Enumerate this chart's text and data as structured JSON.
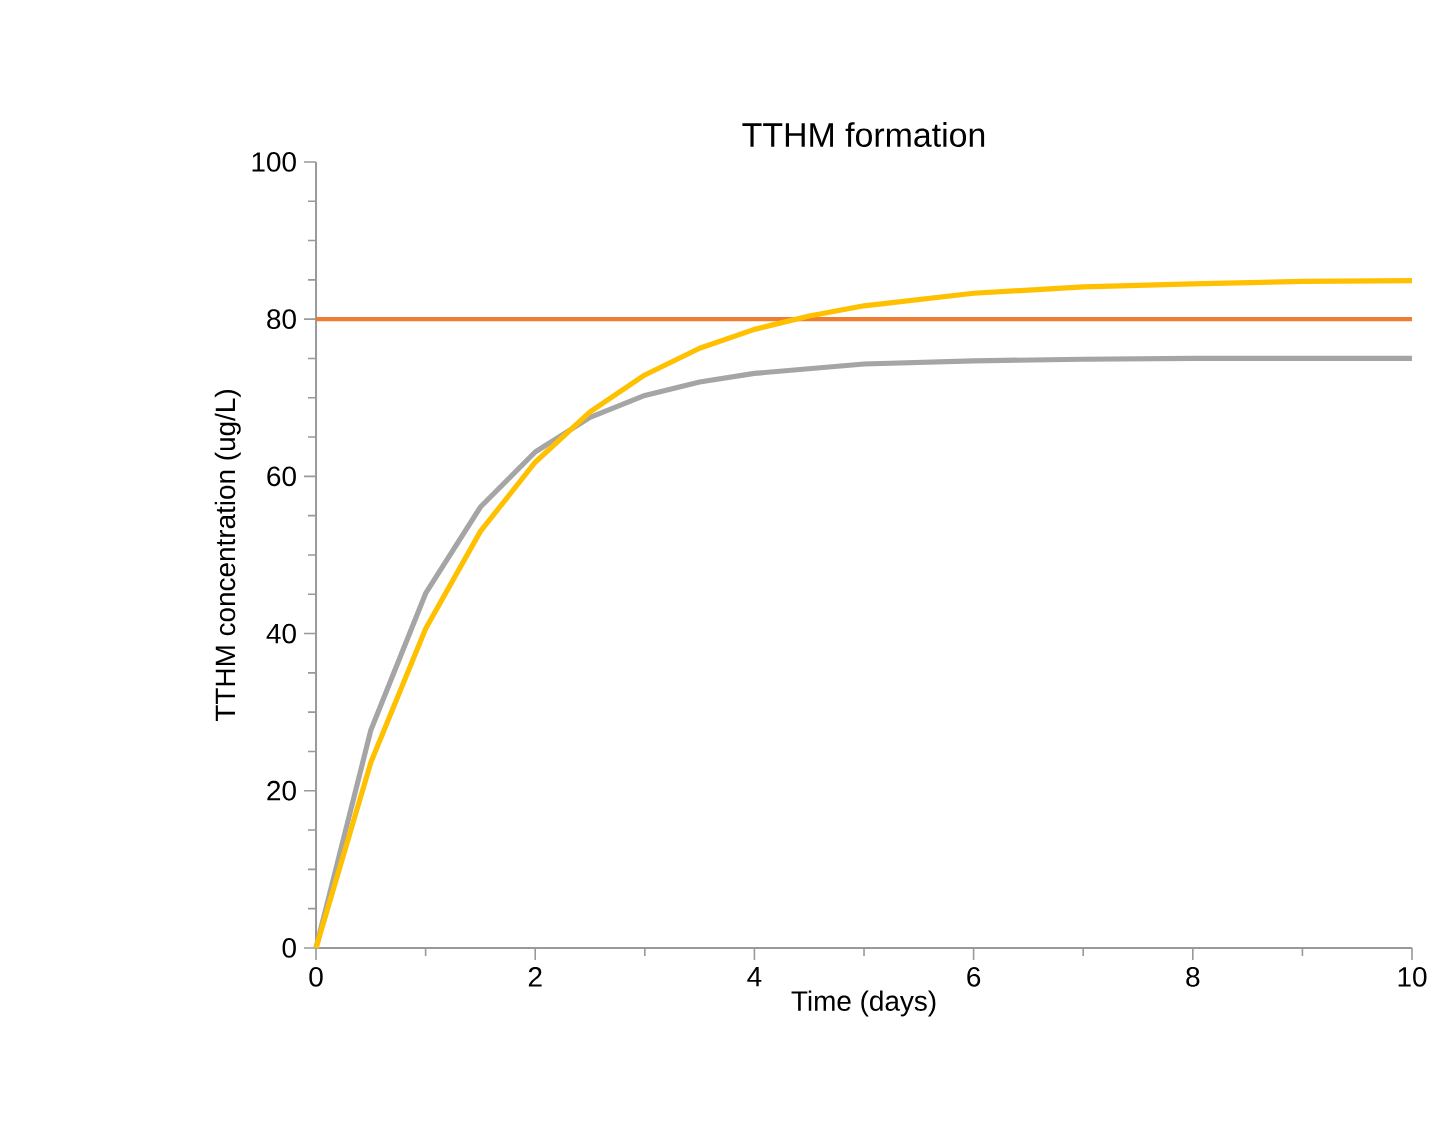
{
  "chart_data": {
    "type": "line",
    "title": "TTHM formation",
    "xlabel": "Time (days)",
    "ylabel": "TTHM concentration (ug/L)",
    "xlim": [
      0,
      10
    ],
    "ylim": [
      0,
      100
    ],
    "xticks": [
      0,
      2,
      4,
      6,
      8,
      10
    ],
    "yticks": [
      0,
      20,
      40,
      60,
      80,
      100
    ],
    "marker": "none",
    "line_style": "solid",
    "series": [
      {
        "color": "#a5a5a5",
        "x": [
          0,
          0.5,
          1,
          1.5,
          2,
          2.5,
          3,
          3.5,
          4,
          5,
          6,
          7,
          8,
          9,
          10
        ],
        "values": [
          0,
          27.7,
          45.1,
          56.1,
          63.1,
          67.5,
          70.3,
          72,
          73.1,
          74.3,
          74.7,
          74.9,
          75,
          75,
          75
        ]
      },
      {
        "color": "#ffc000",
        "x": [
          0,
          0.5,
          1,
          1.5,
          2,
          2.5,
          3,
          3.5,
          4,
          4.5,
          5,
          6,
          7,
          8,
          9,
          10
        ],
        "values": [
          0,
          23.6,
          40.6,
          53,
          61.8,
          68.2,
          72.9,
          76.3,
          78.7,
          80.4,
          81.7,
          83.3,
          84.1,
          84.5,
          84.8,
          84.9
        ]
      }
    ],
    "ref_lines": [
      {
        "axis": "y",
        "value": 80,
        "color": "#ed7d31"
      }
    ]
  }
}
